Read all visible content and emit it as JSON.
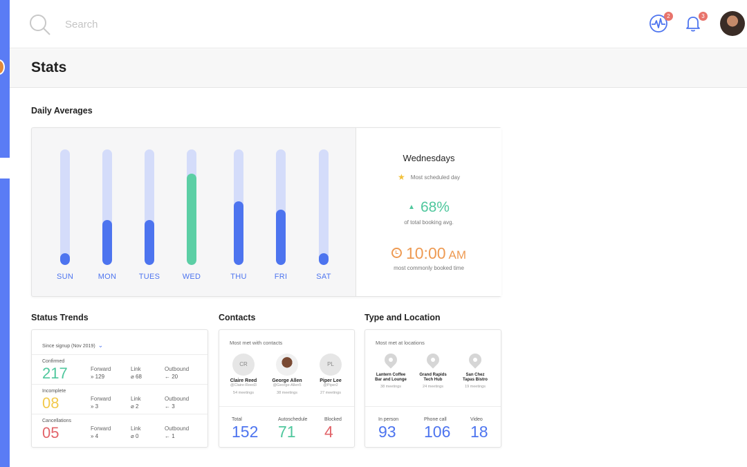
{
  "topbar": {
    "search_placeholder": "Search",
    "activity_badge": "2",
    "notifications_badge": "3"
  },
  "page": {
    "title": "Stats"
  },
  "daily_averages": {
    "title": "Daily Averages",
    "days": [
      {
        "label": "SUN",
        "level": 0.1,
        "highlight": false
      },
      {
        "label": "MON",
        "level": 0.39,
        "highlight": false
      },
      {
        "label": "TUES",
        "level": 0.39,
        "highlight": false
      },
      {
        "label": "WED",
        "level": 0.79,
        "highlight": true
      },
      {
        "label": "THU",
        "level": 0.55,
        "highlight": false
      },
      {
        "label": "FRI",
        "level": 0.48,
        "highlight": false
      },
      {
        "label": "SAT",
        "level": 0.1,
        "highlight": false
      }
    ],
    "summary": {
      "day": "Wednesdays",
      "most_scheduled": "Most scheduled day",
      "percent": "68%",
      "percent_caption": "of total booking avg.",
      "time": "10:00",
      "ampm": "AM",
      "time_caption": "most commonly booked time"
    }
  },
  "status_trends": {
    "title": "Status Trends",
    "since": "Since signup (Nov 2019)",
    "col_forward": "Forward",
    "col_link": "Link",
    "col_outbound": "Outbound",
    "rows": [
      {
        "label": "Confirmed",
        "value": "217",
        "color": "#4fc79d",
        "forward": "» 129",
        "link": "⌀ 68",
        "outbound": "← 20"
      },
      {
        "label": "Incomplete",
        "value": "08",
        "color": "#f2c94c",
        "forward": "» 3",
        "link": "⌀ 2",
        "outbound": "← 3"
      },
      {
        "label": "Cancellations",
        "value": "05",
        "color": "#e2646a",
        "forward": "» 4",
        "link": "⌀ 0",
        "outbound": "← 1"
      }
    ]
  },
  "contacts": {
    "title": "Contacts",
    "header": "Most met with contacts",
    "people": [
      {
        "initials": "CR",
        "name": "Claire Reed",
        "handle": "@Claire-Reed3",
        "meetings": "54 meetings",
        "photo": false
      },
      {
        "initials": "",
        "name": "George Allen",
        "handle": "@George-Allen5",
        "meetings": "38 meetings",
        "photo": true
      },
      {
        "initials": "PL",
        "name": "Piper Lee",
        "handle": "@Piper2",
        "meetings": "27 meetings",
        "photo": false
      }
    ],
    "stats": [
      {
        "label": "Total",
        "value": "152",
        "color": "#4d74ef"
      },
      {
        "label": "Autoschedule",
        "value": "71",
        "color": "#4fc79d"
      },
      {
        "label": "Blocked",
        "value": "4",
        "color": "#e2646a"
      }
    ]
  },
  "type_location": {
    "title": "Type and Location",
    "header": "Most met at locations",
    "locations": [
      {
        "line1": "Lantern Coffee",
        "line2": "Bar and Lounge",
        "meetings": "38 meetings"
      },
      {
        "line1": "Grand Rapids",
        "line2": "Tech Hub",
        "meetings": "24 meetings"
      },
      {
        "line1": "San Chez",
        "line2": "Tapas Bistro",
        "meetings": "19 meetings"
      }
    ],
    "stats": [
      {
        "label": "In person",
        "value": "93",
        "color": "#4d74ef"
      },
      {
        "label": "Phone call",
        "value": "106",
        "color": "#4d74ef"
      },
      {
        "label": "Video",
        "value": "18",
        "color": "#4d74ef"
      }
    ]
  }
}
